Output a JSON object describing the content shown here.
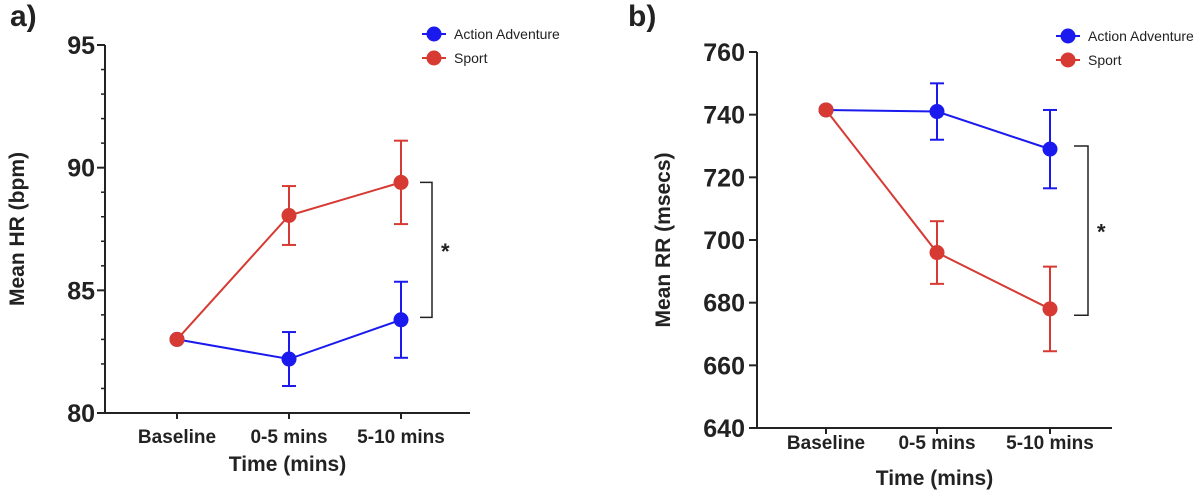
{
  "chart_data": [
    {
      "type": "line",
      "panel_label": "a)",
      "title": "",
      "xlabel": "Time (mins)",
      "ylabel": "Mean HR (bpm)",
      "categories": [
        "Baseline",
        "0-5 mins",
        "5-10 mins"
      ],
      "ylim": [
        80,
        95
      ],
      "yticks": [
        80,
        85,
        90,
        95
      ],
      "minor_step": 1,
      "legend_position": "top-right",
      "series": [
        {
          "name": "Action Adventure",
          "color": "#1a1aee",
          "values": [
            83.0,
            82.2,
            83.8
          ],
          "errors": [
            0,
            1.1,
            1.55
          ]
        },
        {
          "name": "Sport",
          "color": "#d63a33",
          "values": [
            83.0,
            88.05,
            89.4
          ],
          "errors": [
            0,
            1.2,
            1.7
          ]
        }
      ],
      "significance": {
        "label": "*",
        "from_value": 89.4,
        "to_value": 83.9
      }
    },
    {
      "type": "line",
      "panel_label": "b)",
      "title": "",
      "xlabel": "Time (mins)",
      "ylabel": "Mean RR (msecs)",
      "categories": [
        "Baseline",
        "0-5 mins",
        "5-10 mins"
      ],
      "ylim": [
        640,
        760
      ],
      "yticks": [
        640,
        660,
        680,
        700,
        720,
        740,
        760
      ],
      "minor_step": 0,
      "legend_position": "top-right",
      "series": [
        {
          "name": "Action Adventure",
          "color": "#1a1aee",
          "values": [
            741.5,
            741.0,
            729.0
          ],
          "errors": [
            0,
            9,
            12.5
          ]
        },
        {
          "name": "Sport",
          "color": "#d63a33",
          "values": [
            741.5,
            696.0,
            678.0
          ],
          "errors": [
            0,
            10,
            13.5
          ]
        }
      ],
      "significance": {
        "label": "*",
        "from_value": 730,
        "to_value": 676
      }
    }
  ]
}
